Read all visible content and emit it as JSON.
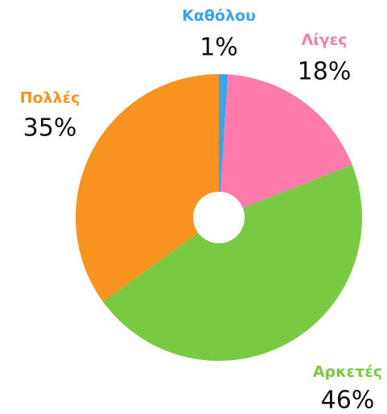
{
  "chart_data": {
    "type": "pie",
    "categories": [
      "Καθόλου",
      "Λίγες",
      "Αρκετές",
      "Πολλές"
    ],
    "values": [
      1,
      18,
      46,
      35
    ],
    "value_labels": [
      "1%",
      "18%",
      "46%",
      "35%"
    ],
    "colors": [
      "#3ba3ec",
      "#ff7bac",
      "#7ac943",
      "#f7931e"
    ]
  }
}
